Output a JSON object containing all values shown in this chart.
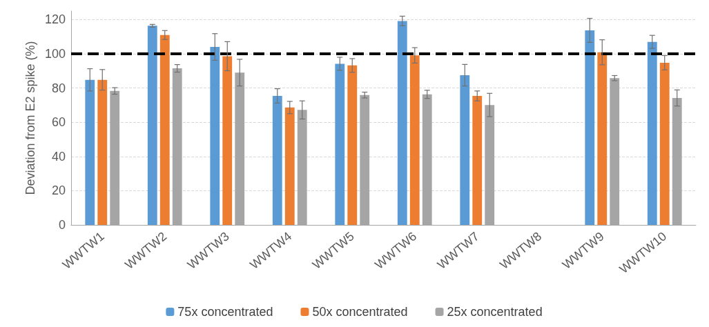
{
  "chart_data": {
    "type": "bar",
    "ylabel": "Deviation from E2 spike (%)",
    "categories": [
      "WWTW1",
      "WWTW2",
      "WWTW3",
      "WWTW4",
      "WWTW5",
      "WWTW6",
      "WWTW7",
      "WWTW8",
      "WWTW9",
      "WWTW10"
    ],
    "series": [
      {
        "name": "75x concentrated",
        "color": "#5b9bd5",
        "values": [
          84.8,
          116.4,
          104,
          75.4,
          94.2,
          119.2,
          87.5,
          null,
          113.7,
          107
        ],
        "errors": [
          6.5,
          0.8,
          7.8,
          4.2,
          3.8,
          2.8,
          6.3,
          null,
          7,
          3.8
        ]
      },
      {
        "name": "50x concentrated",
        "color": "#ed7d31",
        "values": [
          84.8,
          111,
          98.6,
          68.6,
          93.2,
          99.1,
          75.4,
          null,
          100.9,
          94.8
        ],
        "errors": [
          6,
          2.6,
          8.5,
          3.6,
          4,
          4.5,
          2.9,
          null,
          7.3,
          4.2
        ]
      },
      {
        "name": "25x concentrated",
        "color": "#a5a5a5",
        "values": [
          78.3,
          91.5,
          89,
          67.2,
          75.9,
          76.3,
          70.1,
          null,
          85.8,
          74.2
        ],
        "errors": [
          1.9,
          2.2,
          7.8,
          5.3,
          1.7,
          2.4,
          6.8,
          null,
          1.5,
          4.7
        ]
      }
    ],
    "ylim": [
      0,
      125
    ],
    "yticks": [
      0,
      20,
      40,
      60,
      80,
      100,
      120
    ],
    "grid": "y",
    "legend": "bottom",
    "ref_lines": [
      {
        "axis": "y",
        "value": 100,
        "color": "#000000",
        "line_style": "dashed"
      }
    ]
  }
}
